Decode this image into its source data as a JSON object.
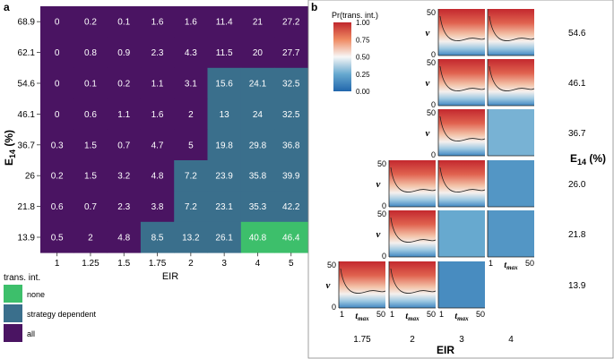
{
  "chart_data": [
    {
      "type": "heatmap",
      "panel_label": "a",
      "xlabel": "EIR",
      "ylabel": "E",
      "ylabel_sub": "14",
      "ylabel_unit": " (%)",
      "x_categories": [
        "1",
        "1.25",
        "1.5",
        "1.75",
        "2",
        "3",
        "4",
        "5"
      ],
      "y_categories": [
        "68.9",
        "62.1",
        "54.6",
        "46.1",
        "36.7",
        "26",
        "21.8",
        "13.9"
      ],
      "values": [
        [
          "0",
          "0.2",
          "0.1",
          "1.6",
          "1.6",
          "11.4",
          "21",
          "27.2"
        ],
        [
          "0",
          "0.8",
          "0.9",
          "2.3",
          "4.3",
          "11.5",
          "20",
          "27.7"
        ],
        [
          "0",
          "0.1",
          "0.2",
          "1.1",
          "3.1",
          "15.6",
          "24.1",
          "32.5"
        ],
        [
          "0",
          "0.6",
          "1.1",
          "1.6",
          "2",
          "13",
          "24",
          "32.5"
        ],
        [
          "0.3",
          "1.5",
          "0.7",
          "4.7",
          "5",
          "19.8",
          "29.8",
          "36.8"
        ],
        [
          "0.2",
          "1.5",
          "3.2",
          "4.8",
          "7.2",
          "23.9",
          "35.8",
          "39.9"
        ],
        [
          "0.6",
          "0.7",
          "2.3",
          "3.8",
          "7.2",
          "23.1",
          "35.3",
          "42.2"
        ],
        [
          "0.5",
          "2",
          "4.8",
          "8.5",
          "13.2",
          "26.1",
          "40.8",
          "46.4"
        ]
      ],
      "categories_grid": [
        [
          "all",
          "all",
          "all",
          "all",
          "all",
          "all",
          "all",
          "all"
        ],
        [
          "all",
          "all",
          "all",
          "all",
          "all",
          "all",
          "all",
          "all"
        ],
        [
          "all",
          "all",
          "all",
          "all",
          "all",
          "dep",
          "dep",
          "dep"
        ],
        [
          "all",
          "all",
          "all",
          "all",
          "all",
          "dep",
          "dep",
          "dep"
        ],
        [
          "all",
          "all",
          "all",
          "all",
          "all",
          "dep",
          "dep",
          "dep"
        ],
        [
          "all",
          "all",
          "all",
          "all",
          "dep",
          "dep",
          "dep",
          "dep"
        ],
        [
          "all",
          "all",
          "all",
          "all",
          "dep",
          "dep",
          "dep",
          "dep"
        ],
        [
          "all",
          "all",
          "all",
          "dep",
          "dep",
          "dep",
          "none",
          "none"
        ]
      ],
      "legend": {
        "title": "trans. int.",
        "items": [
          {
            "key": "none",
            "label": "none",
            "color": "#3dbf6b"
          },
          {
            "key": "dep",
            "label": "strategy dependent",
            "color": "#3a6f8c"
          },
          {
            "key": "all",
            "label": "all",
            "color": "#4a1462"
          }
        ]
      }
    },
    {
      "type": "heatmap",
      "panel_label": "b",
      "xlabel": "EIR",
      "ylabel": "E",
      "ylabel_sub": "14",
      "ylabel_unit": " (%)",
      "x_categories": [
        "1.75",
        "2",
        "3",
        "4"
      ],
      "y_categories": [
        "54.6",
        "46.1",
        "36.7",
        "26.0",
        "21.8",
        "13.9"
      ],
      "tile_xlabel": "t",
      "tile_xlabel_sub": "max",
      "tile_ylabel": "ν",
      "tile_xticks": [
        "1",
        "50"
      ],
      "tile_yticks": [
        "0",
        "50"
      ],
      "legend": {
        "title": "Pr(trans. int.)",
        "ticks": [
          "1.00",
          "0.75",
          "0.50",
          "0.25",
          "0.00"
        ]
      },
      "tile_probability": [
        [
          null,
          null,
          "surface",
          "surface"
        ],
        [
          null,
          null,
          "surface",
          "surface"
        ],
        [
          null,
          null,
          "surface",
          0.28
        ],
        [
          null,
          "surface",
          "surface",
          0.18
        ],
        [
          null,
          "surface",
          0.25,
          0.18
        ],
        [
          "surface",
          "surface",
          0.14,
          null
        ]
      ]
    }
  ]
}
